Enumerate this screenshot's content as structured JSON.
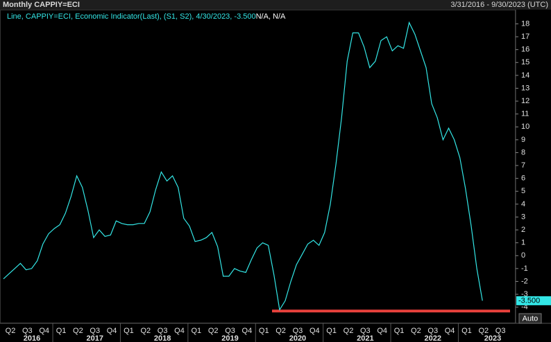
{
  "chart_data": {
    "type": "line",
    "title": "Monthly CAPPIY=ECI",
    "date_range": "3/31/2016 - 9/30/2023 (UTC)",
    "series": [
      {
        "name": "Line, CAPPIY=ECI, Economic Indicator(Last), (S1, S2), 4/30/2023, -3.500",
        "color": "#33e6e6",
        "values": [
          -1.8,
          -1.4,
          -1.0,
          -0.6,
          -1.1,
          -1.0,
          -0.4,
          0.9,
          1.7,
          2.1,
          2.4,
          3.3,
          4.6,
          6.2,
          5.3,
          3.5,
          1.4,
          2.0,
          1.5,
          1.6,
          2.7,
          2.5,
          2.4,
          2.4,
          2.5,
          2.5,
          3.4,
          5.1,
          6.5,
          5.8,
          6.2,
          5.3,
          2.9,
          2.3,
          1.1,
          1.2,
          1.4,
          1.8,
          0.7,
          -1.6,
          -1.6,
          -1.0,
          -1.2,
          -1.3,
          -0.3,
          0.6,
          1.0,
          0.8,
          -1.5,
          -4.2,
          -3.5,
          -2.0,
          -0.7,
          0.1,
          0.9,
          1.2,
          0.8,
          1.8,
          4.0,
          7.1,
          10.7,
          15.1,
          17.3,
          17.3,
          16.2,
          14.6,
          15.1,
          16.7,
          17.0,
          15.9,
          16.3,
          16.1,
          18.1,
          17.2,
          15.9,
          14.6,
          11.8,
          10.7,
          9.0,
          9.9,
          9.0,
          7.6,
          5.2,
          2.3,
          -1.0,
          -3.5
        ]
      }
    ],
    "legend_suffix": "N/A, N/A",
    "ylim": [
      -5.2,
      19.1
    ],
    "yticks": [
      -4,
      -3,
      -2,
      -1,
      0,
      1,
      2,
      3,
      4,
      5,
      6,
      7,
      8,
      9,
      10,
      11,
      12,
      13,
      14,
      15,
      16,
      17,
      18
    ],
    "last_value": {
      "value": -3.5,
      "label": "-3.500"
    },
    "reference_line": {
      "value": -4.3,
      "color": "#e8413c"
    },
    "quarters": [
      "Q2",
      "Q3",
      "Q4",
      "Q1",
      "Q2",
      "Q3",
      "Q4",
      "Q1",
      "Q2",
      "Q3",
      "Q4",
      "Q1",
      "Q2",
      "Q3",
      "Q4",
      "Q1",
      "Q2",
      "Q3",
      "Q4",
      "Q1",
      "Q2",
      "Q3",
      "Q4",
      "Q1",
      "Q2",
      "Q3",
      "Q4",
      "Q1",
      "Q2",
      "Q3"
    ],
    "years": [
      "2016",
      "2017",
      "2018",
      "2019",
      "2020",
      "2021",
      "2022",
      "2023"
    ],
    "button": "Auto"
  }
}
